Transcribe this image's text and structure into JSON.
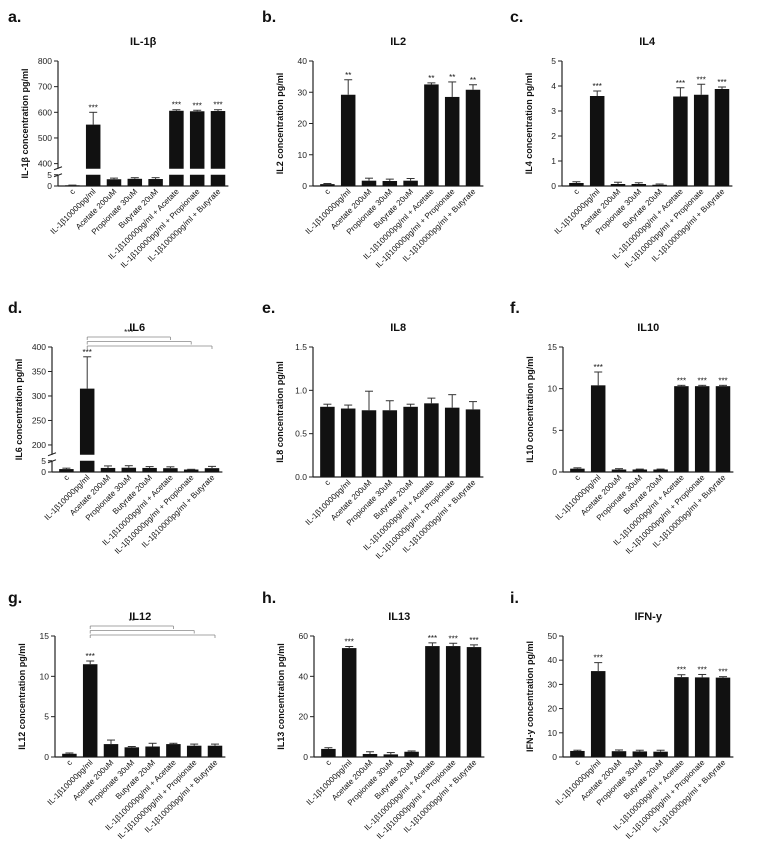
{
  "categories": [
    "c",
    "IL-1β10000pg/ml",
    "Acetate 200uM",
    "Propionate 30uM",
    "Butyrate 20uM",
    "IL-1β10000pg/ml + Acetate",
    "IL-1β10000pg/ml + Propionate",
    "IL-1β10000pg/ml + Butyrate"
  ],
  "chart_data": [
    {
      "panel_label": "a.",
      "type": "bar",
      "title": "IL-1β",
      "ylabel": "IL-1β concentration pg/ml",
      "categories": [
        "c",
        "IL-1β10000pg/ml",
        "Acetate 200uM",
        "Propionate 30uM",
        "Butyrate 20uM",
        "IL-1β10000pg/ml + Acetate",
        "IL-1β10000pg/ml + Propionate",
        "IL-1β10000pg/ml + Butyrate"
      ],
      "values": [
        0.3,
        552,
        3.0,
        3.2,
        3.1,
        606,
        604,
        605
      ],
      "errors": [
        0.1,
        48,
        0.5,
        0.5,
        0.6,
        4,
        4,
        5
      ],
      "significance": [
        "",
        "***",
        "",
        "",
        "",
        "***",
        "***",
        "***"
      ],
      "y_segments": [
        {
          "range": [
            0,
            5
          ],
          "ticks": [
            0,
            5
          ]
        },
        {
          "range": [
            380,
            800
          ],
          "ticks": [
            400,
            500,
            600,
            700,
            800
          ]
        }
      ],
      "comparisons": []
    },
    {
      "panel_label": "b.",
      "type": "bar",
      "title": "IL2",
      "ylabel": "IL2 concentration pg/ml",
      "categories": [
        "c",
        "IL-1β10000pg/ml",
        "Acetate 200uM",
        "Propionate 30uM",
        "Butyrate 20uM",
        "IL-1β10000pg/ml + Acetate",
        "IL-1β10000pg/ml + Propionate",
        "IL-1β10000pg/ml + Butyrate"
      ],
      "values": [
        0.6,
        29.2,
        1.7,
        1.6,
        1.7,
        32.5,
        28.5,
        30.8
      ],
      "errors": [
        0.2,
        4.8,
        0.8,
        0.6,
        0.7,
        0.5,
        4.8,
        1.6
      ],
      "significance": [
        "",
        "**",
        "",
        "",
        "",
        "**",
        "**",
        "**"
      ],
      "y_segments": [
        {
          "range": [
            0,
            40
          ],
          "ticks": [
            0,
            10,
            20,
            30,
            40
          ]
        }
      ],
      "comparisons": []
    },
    {
      "panel_label": "c.",
      "type": "bar",
      "title": "IL4",
      "ylabel": "IL4 concentration pg/ml",
      "categories": [
        "c",
        "IL-1β10000pg/ml",
        "Acetate 200uM",
        "Propionate 30uM",
        "Butyrate 20uM",
        "IL-1β10000pg/ml + Acetate",
        "IL-1β10000pg/ml + Propionate",
        "IL-1β10000pg/ml + Butyrate"
      ],
      "values": [
        0.12,
        3.6,
        0.08,
        0.08,
        0.05,
        3.58,
        3.65,
        3.88
      ],
      "errors": [
        0.05,
        0.2,
        0.07,
        0.05,
        0.03,
        0.35,
        0.42,
        0.08
      ],
      "significance": [
        "",
        "***",
        "",
        "",
        "",
        "***",
        "***",
        "***"
      ],
      "y_segments": [
        {
          "range": [
            0,
            5
          ],
          "ticks": [
            0,
            1,
            2,
            3,
            4,
            5
          ]
        }
      ],
      "comparisons": []
    },
    {
      "panel_label": "d.",
      "type": "bar",
      "title": "IL6",
      "ylabel": "IL6 concentration pg/ml",
      "categories": [
        "c",
        "IL-1β10000pg/ml",
        "Acetate 200uM",
        "Propionate 30uM",
        "Butyrate 20uM",
        "IL-1β10000pg/ml + Acetate",
        "IL-1β10000pg/ml + Propionate",
        "IL-1β10000pg/ml + Butyrate"
      ],
      "values": [
        1.3,
        315,
        1.8,
        1.9,
        1.8,
        1.7,
        1.1,
        1.7
      ],
      "errors": [
        0.4,
        65,
        0.9,
        0.9,
        0.6,
        0.6,
        0.1,
        0.8
      ],
      "significance": [
        "",
        "***",
        "",
        "",
        "",
        "",
        "",
        ""
      ],
      "y_segments": [
        {
          "range": [
            0,
            5
          ],
          "ticks": [
            0,
            5
          ]
        },
        {
          "range": [
            180,
            400
          ],
          "ticks": [
            200,
            250,
            300,
            350,
            400
          ]
        }
      ],
      "comparisons": [
        {
          "from": 1,
          "to": 5,
          "label": "***"
        },
        {
          "from": 1,
          "to": 6,
          "label": ""
        },
        {
          "from": 1,
          "to": 7,
          "label": ""
        }
      ]
    },
    {
      "panel_label": "e.",
      "type": "bar",
      "title": "IL8",
      "ylabel": "IL8 concentration pg/ml",
      "categories": [
        "c",
        "IL-1β10000pg/ml",
        "Acetate 200uM",
        "Propionate 30uM",
        "Butyrate 20uM",
        "IL-1β10000pg/ml + Acetate",
        "IL-1β10000pg/ml + Propionate",
        "IL-1β10000pg/ml + Butyrate"
      ],
      "values": [
        0.81,
        0.79,
        0.77,
        0.77,
        0.81,
        0.85,
        0.8,
        0.78
      ],
      "errors": [
        0.03,
        0.04,
        0.22,
        0.11,
        0.03,
        0.06,
        0.15,
        0.09
      ],
      "significance": [
        "",
        "",
        "",
        "",
        "",
        "",
        "",
        ""
      ],
      "y_segments": [
        {
          "range": [
            0,
            1.5
          ],
          "ticks": [
            0.0,
            0.5,
            1.0,
            1.5
          ]
        }
      ],
      "comparisons": []
    },
    {
      "panel_label": "f.",
      "type": "bar",
      "title": "IL10",
      "ylabel": "IL10 concentration pg/ml",
      "categories": [
        "c",
        "IL-1β10000pg/ml",
        "Acetate 200uM",
        "Propionate 30uM",
        "Butyrate 20uM",
        "IL-1β10000pg/ml + Acetate",
        "IL-1β10000pg/ml + Propionate",
        "IL-1β10000pg/ml + Butyrate"
      ],
      "values": [
        0.4,
        10.4,
        0.3,
        0.3,
        0.3,
        10.3,
        10.3,
        10.3
      ],
      "errors": [
        0.1,
        1.6,
        0.1,
        0.05,
        0.05,
        0.1,
        0.1,
        0.1
      ],
      "significance": [
        "",
        "***",
        "",
        "",
        "",
        "***",
        "***",
        "***"
      ],
      "y_segments": [
        {
          "range": [
            0,
            15
          ],
          "ticks": [
            0,
            5,
            10,
            15
          ]
        }
      ],
      "comparisons": []
    },
    {
      "panel_label": "g.",
      "type": "bar",
      "title": "IL12",
      "ylabel": "IL12 concentration pg/ml",
      "categories": [
        "c",
        "IL-1β10000pg/ml",
        "Acetate 200uM",
        "Propionate 30uM",
        "Butyrate 20uM",
        "IL-1β10000pg/ml + Acetate",
        "IL-1β10000pg/ml + Propionate",
        "IL-1β10000pg/ml + Butyrate"
      ],
      "values": [
        0.4,
        11.5,
        1.6,
        1.2,
        1.3,
        1.6,
        1.4,
        1.4
      ],
      "errors": [
        0.1,
        0.4,
        0.5,
        0.1,
        0.4,
        0.1,
        0.2,
        0.2
      ],
      "significance": [
        "",
        "***",
        "",
        "",
        "",
        "",
        "",
        ""
      ],
      "y_segments": [
        {
          "range": [
            0,
            15
          ],
          "ticks": [
            0,
            5,
            10,
            15
          ]
        }
      ],
      "comparisons": [
        {
          "from": 1,
          "to": 5,
          "label": "**"
        },
        {
          "from": 1,
          "to": 6,
          "label": ""
        },
        {
          "from": 1,
          "to": 7,
          "label": ""
        }
      ]
    },
    {
      "panel_label": "h.",
      "type": "bar",
      "title": "IL13",
      "ylabel": "IL13 concentration pg/ml",
      "categories": [
        "c",
        "IL-1β10000pg/ml",
        "Acetate 200uM",
        "Propionate 30uM",
        "Butyrate 20uM",
        "IL-1β10000pg/ml + Acetate",
        "IL-1β10000pg/ml + Propionate",
        "IL-1β10000pg/ml + Butyrate"
      ],
      "values": [
        4.0,
        54.0,
        1.5,
        1.3,
        2.6,
        55.0,
        55.0,
        54.5
      ],
      "errors": [
        0.6,
        0.8,
        1.1,
        0.9,
        0.4,
        1.6,
        1.4,
        1.1
      ],
      "significance": [
        "",
        "***",
        "",
        "",
        "",
        "***",
        "***",
        "***"
      ],
      "y_segments": [
        {
          "range": [
            0,
            60
          ],
          "ticks": [
            0,
            20,
            40,
            60
          ]
        }
      ],
      "comparisons": []
    },
    {
      "panel_label": "i.",
      "type": "bar",
      "title": "IFN-y",
      "ylabel": "IFN-y concentration pg/ml",
      "categories": [
        "c",
        "IL-1β10000pg/ml",
        "Acetate 200uM",
        "Propionate 30uM",
        "Butyrate 20uM",
        "IL-1β10000pg/ml + Acetate",
        "IL-1β10000pg/ml + Propionate",
        "IL-1β10000pg/ml + Butyrate"
      ],
      "values": [
        2.5,
        35.5,
        2.4,
        2.3,
        2.2,
        33.0,
        32.9,
        32.8
      ],
      "errors": [
        0.3,
        3.5,
        0.5,
        0.5,
        0.6,
        1.0,
        1.2,
        0.4
      ],
      "significance": [
        "",
        "***",
        "",
        "",
        "",
        "***",
        "***",
        "***"
      ],
      "y_segments": [
        {
          "range": [
            0,
            50
          ],
          "ticks": [
            0,
            10,
            20,
            30,
            40,
            50
          ]
        }
      ],
      "comparisons": []
    }
  ]
}
